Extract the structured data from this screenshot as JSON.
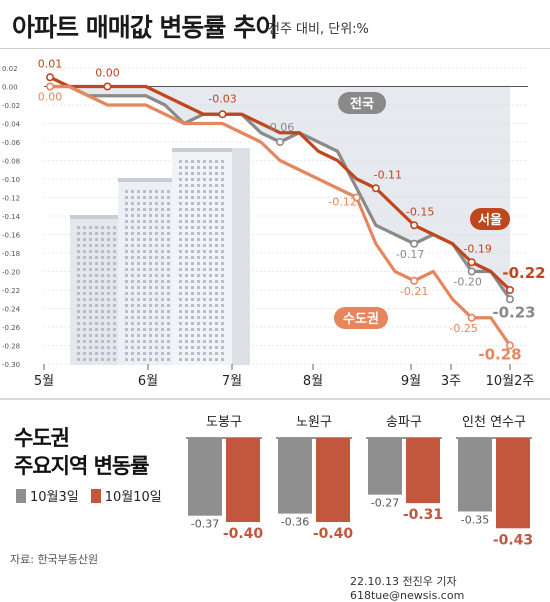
{
  "header": {
    "title": "아파트 매매값 변동률 추이",
    "subtitle": "전주 대비, 단위:%"
  },
  "colors": {
    "national": "#8a8a8a",
    "seoul": "#c0461e",
    "capital": "#e6865c",
    "bar_oct3": "#8f8f8f",
    "bar_oct10": "#c3573d"
  },
  "chart_data": [
    {
      "type": "line",
      "x_labels": [
        "5월",
        "6월",
        "7월",
        "8월",
        "9월",
        "3주",
        "10월2주"
      ],
      "ylim": [
        -0.3,
        0.02
      ],
      "yticks": [
        "0.02",
        "0.00",
        "-0.02",
        "-0.04",
        "-0.06",
        "-0.08",
        "-0.10",
        "-0.12",
        "-0.14",
        "-0.16",
        "-0.18",
        "-0.20",
        "-0.22",
        "-0.24",
        "-0.26",
        "-0.28",
        "-0.30"
      ],
      "series": [
        {
          "name": "전국",
          "color": "#8a8a8a",
          "values": [
            0.0,
            0.0,
            -0.01,
            -0.01,
            -0.01,
            -0.01,
            -0.02,
            -0.04,
            -0.03,
            -0.03,
            -0.03,
            -0.05,
            -0.06,
            -0.05,
            -0.06,
            -0.07,
            -0.11,
            -0.15,
            -0.16,
            -0.17,
            -0.16,
            -0.17,
            -0.2,
            -0.2,
            -0.23
          ],
          "labeled_points": [
            {
              "i": 12,
              "label": "-0.06"
            },
            {
              "i": 19,
              "label": "-0.17"
            },
            {
              "i": 22,
              "label": "-0.20"
            },
            {
              "i": 24,
              "label": "-0.23"
            }
          ]
        },
        {
          "name": "서울",
          "color": "#c0461e",
          "values": [
            0.01,
            0.0,
            0.0,
            0.0,
            0.0,
            0.0,
            -0.01,
            -0.02,
            -0.03,
            -0.03,
            -0.03,
            -0.04,
            -0.05,
            -0.05,
            -0.07,
            -0.08,
            -0.1,
            -0.11,
            -0.13,
            -0.15,
            -0.16,
            -0.17,
            -0.19,
            -0.2,
            -0.22
          ],
          "labeled_points": [
            {
              "i": 0,
              "label": "0.01"
            },
            {
              "i": 3,
              "label": "0.00"
            },
            {
              "i": 9,
              "label": "-0.03"
            },
            {
              "i": 17,
              "label": "-0.11"
            },
            {
              "i": 19,
              "label": "-0.15"
            },
            {
              "i": 22,
              "label": "-0.19"
            },
            {
              "i": 24,
              "label": "-0.22"
            }
          ]
        },
        {
          "name": "수도권",
          "color": "#e6865c",
          "values": [
            0.0,
            0.0,
            -0.01,
            -0.02,
            -0.02,
            -0.02,
            -0.03,
            -0.04,
            -0.04,
            -0.04,
            -0.05,
            -0.06,
            -0.08,
            -0.09,
            -0.1,
            -0.11,
            -0.12,
            -0.17,
            -0.2,
            -0.21,
            -0.2,
            -0.23,
            -0.25,
            -0.25,
            -0.28
          ],
          "labeled_points": [
            {
              "i": 0,
              "label": "0.00"
            },
            {
              "i": 16,
              "label": "-0.12"
            },
            {
              "i": 19,
              "label": "-0.21"
            },
            {
              "i": 22,
              "label": "-0.25"
            },
            {
              "i": 24,
              "label": "-0.28"
            }
          ]
        }
      ]
    },
    {
      "type": "bar",
      "title_lines": [
        "수도권",
        "주요지역 변동률"
      ],
      "categories": [
        "도봉구",
        "노원구",
        "송파구",
        "인천 연수구"
      ],
      "series": [
        {
          "name": "10월3일",
          "color": "#8f8f8f",
          "values": [
            -0.37,
            -0.36,
            -0.27,
            -0.35
          ],
          "labels": [
            "-0.37",
            "-0.36",
            "-0.27",
            "-0.35"
          ]
        },
        {
          "name": "10월10일",
          "color": "#c3573d",
          "values": [
            -0.4,
            -0.4,
            -0.31,
            -0.43
          ],
          "labels": [
            "-0.40",
            "-0.40",
            "-0.31",
            "-0.43"
          ]
        }
      ]
    }
  ],
  "footer": {
    "source": "자료: 한국부동산원",
    "credit": "22.10.13 전진우 기자 618tue@newsis.com"
  }
}
